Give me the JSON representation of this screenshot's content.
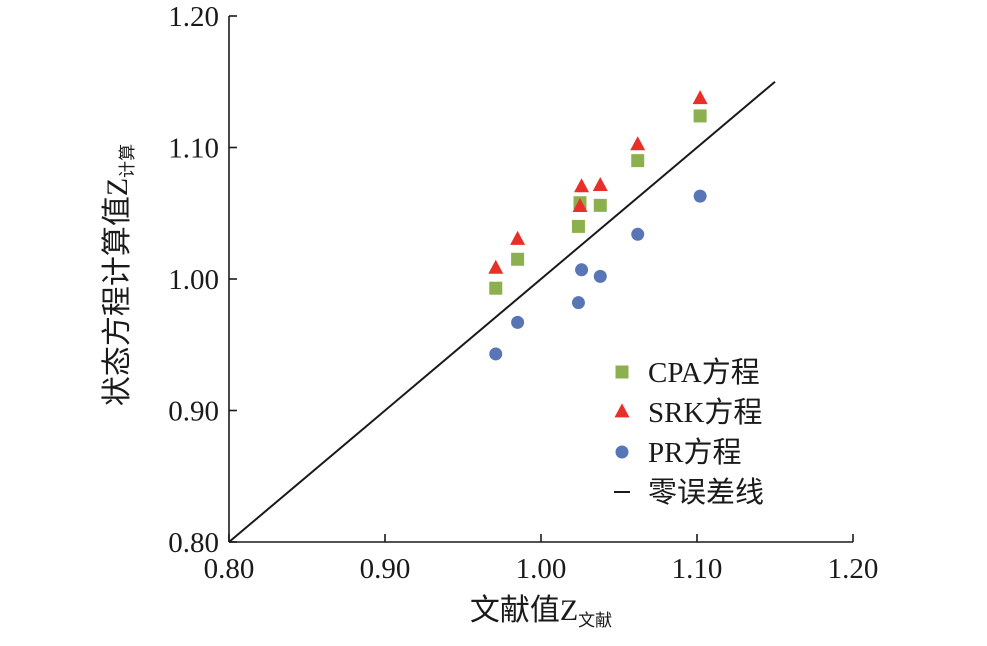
{
  "chart_data": {
    "type": "scatter",
    "title": "",
    "xlabel": "文献值Z",
    "xlabel_sub": "文献",
    "ylabel": "状态方程计算值Z",
    "ylabel_sub": "计算",
    "xlim": [
      0.8,
      1.2
    ],
    "ylim": [
      0.8,
      1.2
    ],
    "xticks": [
      "0.80",
      "0.90",
      "1.00",
      "1.10",
      "1.20"
    ],
    "yticks": [
      "0.80",
      "0.90",
      "1.00",
      "1.10",
      "1.20"
    ],
    "grid": false,
    "legend_position": "bottom-right",
    "series": [
      {
        "name": "CPA方程",
        "marker": "square",
        "color": "#8db04e",
        "points": [
          [
            0.971,
            0.993
          ],
          [
            0.985,
            1.015
          ],
          [
            1.024,
            1.04
          ],
          [
            1.025,
            1.058
          ],
          [
            1.038,
            1.056
          ],
          [
            1.062,
            1.09
          ],
          [
            1.102,
            1.124
          ]
        ]
      },
      {
        "name": "SRK方程",
        "marker": "triangle",
        "color": "#e8302a",
        "points": [
          [
            0.971,
            1.008
          ],
          [
            0.985,
            1.03
          ],
          [
            1.025,
            1.055
          ],
          [
            1.026,
            1.07
          ],
          [
            1.038,
            1.071
          ],
          [
            1.062,
            1.102
          ],
          [
            1.102,
            1.137
          ]
        ]
      },
      {
        "name": "PR方程",
        "marker": "circle",
        "color": "#5875b5",
        "points": [
          [
            0.971,
            0.943
          ],
          [
            0.985,
            0.967
          ],
          [
            1.024,
            0.982
          ],
          [
            1.026,
            1.007
          ],
          [
            1.038,
            1.002
          ],
          [
            1.062,
            1.034
          ],
          [
            1.102,
            1.063
          ]
        ]
      }
    ],
    "reference_line": {
      "name": "零误差线",
      "color": "#1a1a1a",
      "from": [
        0.8,
        0.8
      ],
      "to": [
        1.15,
        1.15
      ]
    }
  }
}
